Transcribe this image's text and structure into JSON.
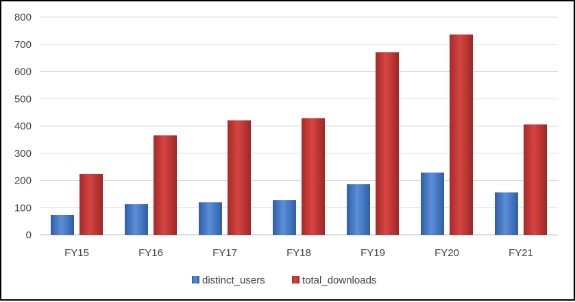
{
  "chart_data": {
    "type": "bar",
    "title": "",
    "xlabel": "",
    "ylabel": "",
    "categories": [
      "FY15",
      "FY16",
      "FY17",
      "FY18",
      "FY19",
      "FY20",
      "FY21"
    ],
    "series": [
      {
        "name": "distinct_users",
        "values": [
          73,
          113,
          120,
          128,
          186,
          229,
          156
        ],
        "color": "#4472C4"
      },
      {
        "name": "total_downloads",
        "values": [
          224,
          366,
          421,
          429,
          671,
          736,
          406
        ],
        "color": "#C0392B"
      }
    ],
    "ylim": [
      0,
      800
    ],
    "yticks": [
      0,
      100,
      200,
      300,
      400,
      500,
      600,
      700,
      800
    ],
    "grid": true,
    "legend_position": "bottom"
  }
}
